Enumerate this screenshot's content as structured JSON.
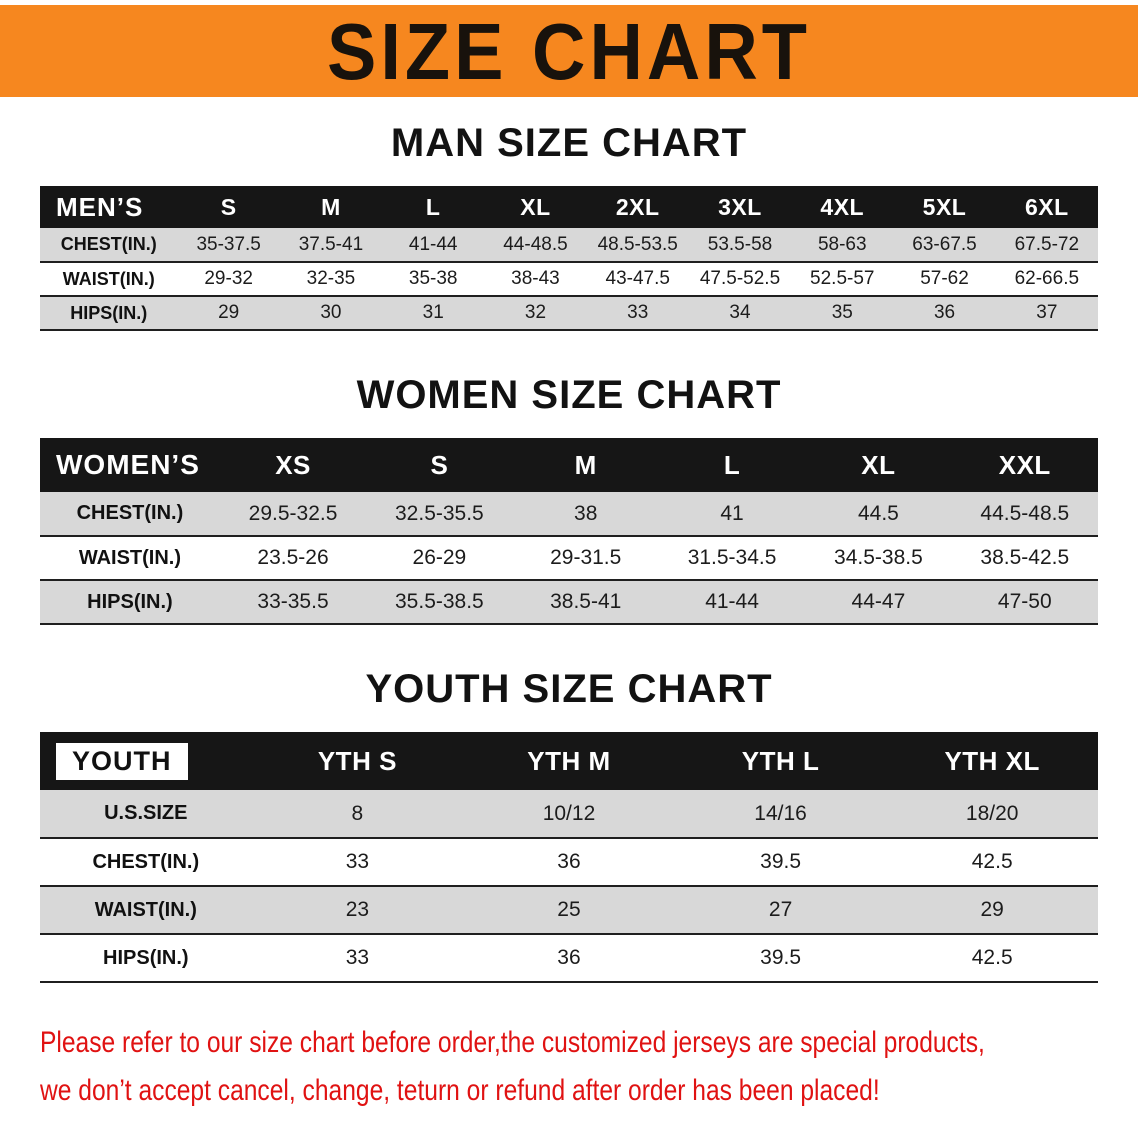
{
  "banner": {
    "title": "SIZE CHART"
  },
  "colors": {
    "banner-orange": "#F6871F",
    "header-black": "#161616",
    "row-gray": "#D8D8D8",
    "disclaimer-red": "#E01212"
  },
  "sections": [
    {
      "heading": "MAN SIZE CHART",
      "table": {
        "header": [
          "MEN’S",
          "S",
          "M",
          "L",
          "XL",
          "2XL",
          "3XL",
          "4XL",
          "5XL",
          "6XL"
        ],
        "rows": [
          [
            "CHEST(IN.)",
            "35-37.5",
            "37.5-41",
            "41-44",
            "44-48.5",
            "48.5-53.5",
            "53.5-58",
            "58-63",
            "63-67.5",
            "67.5-72"
          ],
          [
            "WAIST(IN.)",
            "29-32",
            "32-35",
            "35-38",
            "38-43",
            "43-47.5",
            "47.5-52.5",
            "52.5-57",
            "57-62",
            "62-66.5"
          ],
          [
            "HIPS(IN.)",
            "29",
            "30",
            "31",
            "32",
            "33",
            "34",
            "35",
            "36",
            "37"
          ]
        ]
      }
    },
    {
      "heading": "WOMEN SIZE CHART",
      "table": {
        "header": [
          "WOMEN’S",
          "XS",
          "S",
          "M",
          "L",
          "XL",
          "XXL"
        ],
        "rows": [
          [
            "CHEST(IN.)",
            "29.5-32.5",
            "32.5-35.5",
            "38",
            "41",
            "44.5",
            "44.5-48.5"
          ],
          [
            "WAIST(IN.)",
            "23.5-26",
            "26-29",
            "29-31.5",
            "31.5-34.5",
            "34.5-38.5",
            "38.5-42.5"
          ],
          [
            "HIPS(IN.)",
            "33-35.5",
            "35.5-38.5",
            "38.5-41",
            "41-44",
            "44-47",
            "47-50"
          ]
        ]
      }
    },
    {
      "heading": "YOUTH SIZE CHART",
      "table": {
        "header": [
          "YOUTH",
          "YTH S",
          "YTH M",
          "YTH L",
          "YTH XL"
        ],
        "rows": [
          [
            "U.S.SIZE",
            "8",
            "10/12",
            "14/16",
            "18/20"
          ],
          [
            "CHEST(IN.)",
            "33",
            "36",
            "39.5",
            "42.5"
          ],
          [
            "WAIST(IN.)",
            "23",
            "25",
            "27",
            "29"
          ],
          [
            "HIPS(IN.)",
            "33",
            "36",
            "39.5",
            "42.5"
          ]
        ]
      }
    }
  ],
  "disclaimer": {
    "line1": "Please refer to our size chart before order,the customized jerseys are special products,",
    "line2": "we don’t accept cancel, change, teturn or refund after order has been placed!"
  }
}
